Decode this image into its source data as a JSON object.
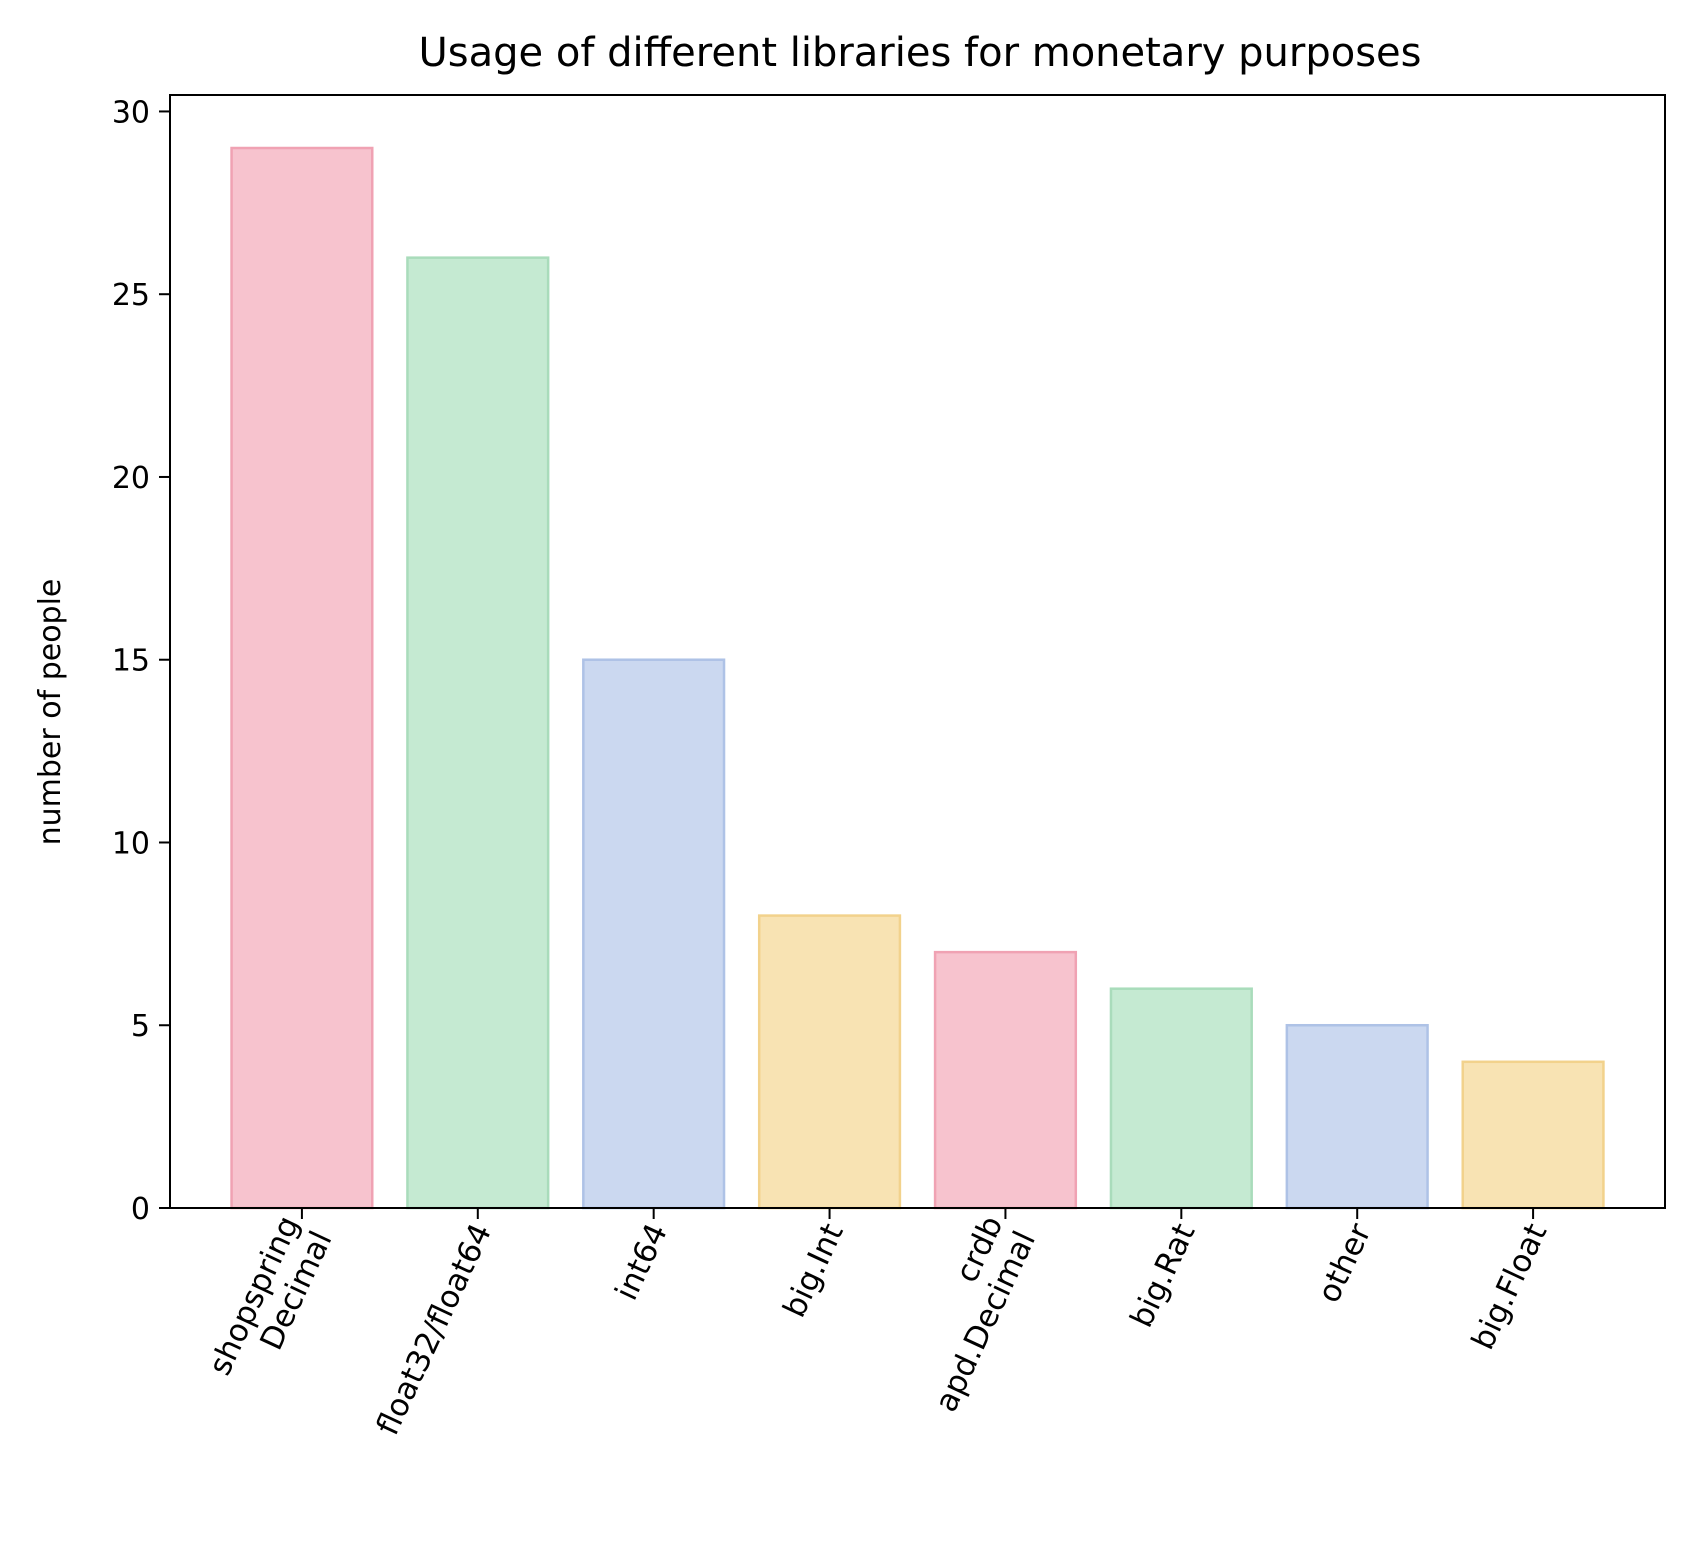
{
  "chart_data": {
    "type": "bar",
    "title": "Usage of different libraries for monetary purposes",
    "xlabel": "",
    "ylabel": "number of people",
    "categories": [
      [
        "shopspring",
        "Decimal"
      ],
      [
        "float32/float64"
      ],
      [
        "int64"
      ],
      [
        "big.Int"
      ],
      [
        "crdb",
        "apd.Decimal"
      ],
      [
        "big.Rat"
      ],
      [
        "other"
      ],
      [
        "big.Float"
      ]
    ],
    "values": [
      29,
      26,
      15,
      8,
      7,
      6,
      5,
      4
    ],
    "ylim": [
      0,
      30.45
    ],
    "yticks": [
      0,
      5,
      10,
      15,
      20,
      25,
      30
    ],
    "grid": false,
    "colors": [
      "#f7c3ce",
      "#c5ead2",
      "#cbd8f0",
      "#f8e3b3"
    ],
    "edge_colors": [
      "#f0a2b3",
      "#a9dcbb",
      "#aec2e6",
      "#f2d28c"
    ],
    "xtick_rotation": -65
  }
}
